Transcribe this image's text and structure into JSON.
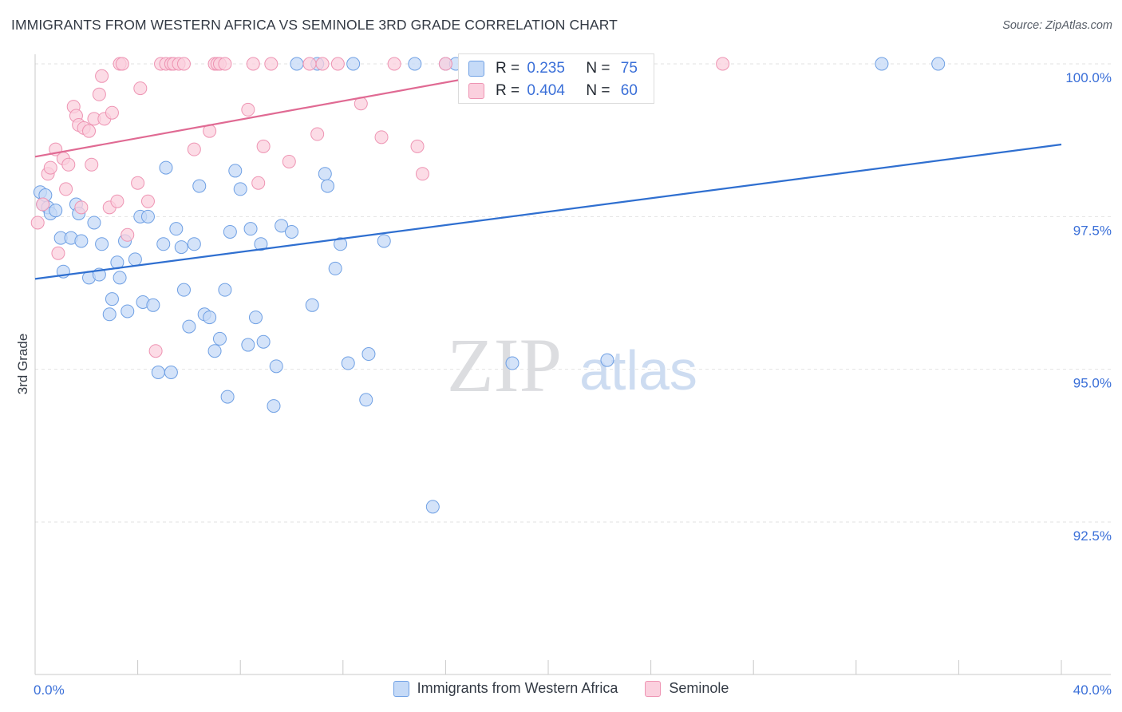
{
  "title": "IMMIGRANTS FROM WESTERN AFRICA VS SEMINOLE 3RD GRADE CORRELATION CHART",
  "source": "Source: ZipAtlas.com",
  "watermark": {
    "zip": "ZIP",
    "atlas": "atlas"
  },
  "stats": [
    {
      "r_label": "R =",
      "r_value": "0.235",
      "n_label": "N =",
      "n_value": "75",
      "color": "blue"
    },
    {
      "r_label": "R =",
      "r_value": "0.404",
      "n_label": "N =",
      "n_value": "60",
      "color": "pink"
    }
  ],
  "legend": [
    {
      "label": "Immigrants from Western Africa",
      "color": "blue"
    },
    {
      "label": "Seminole",
      "color": "pink"
    }
  ],
  "colors": {
    "blue_fill": "#c5daf7",
    "blue_stroke": "#6fa0e4",
    "blue_line": "#2f6fd0",
    "pink_fill": "#fbd0de",
    "pink_stroke": "#ee94b3",
    "pink_line": "#e06a93",
    "tick_label": "#3a6fd8",
    "grid": "#e2e2e2"
  },
  "chart_data": {
    "type": "scatter",
    "title": "IMMIGRANTS FROM WESTERN AFRICA VS SEMINOLE 3RD GRADE CORRELATION CHART",
    "xlabel": "",
    "ylabel": "3rd Grade",
    "xlim": [
      0,
      40
    ],
    "ylim": [
      90.2,
      100.25
    ],
    "x_tick_labels": [
      {
        "value": 0,
        "label": "0.0%"
      },
      {
        "value": 40,
        "label": "40.0%"
      }
    ],
    "x_minor_ticks": [
      0,
      4,
      8,
      12,
      16,
      20,
      24,
      28,
      32,
      36,
      40
    ],
    "y_ticks": [
      {
        "value": 100.0,
        "label": "100.0%"
      },
      {
        "value": 97.5,
        "label": "97.5%"
      },
      {
        "value": 95.0,
        "label": "95.0%"
      },
      {
        "value": 92.5,
        "label": "92.5%"
      }
    ],
    "series": [
      {
        "name": "Immigrants from Western Africa",
        "color": "blue",
        "trend": {
          "x": [
            0,
            40
          ],
          "y": [
            96.48,
            98.68
          ]
        },
        "points": [
          [
            0.2,
            97.9
          ],
          [
            0.3,
            97.7
          ],
          [
            0.4,
            97.85
          ],
          [
            0.5,
            97.65
          ],
          [
            0.6,
            97.55
          ],
          [
            0.8,
            97.6
          ],
          [
            1.0,
            97.15
          ],
          [
            1.1,
            96.6
          ],
          [
            1.4,
            97.15
          ],
          [
            1.6,
            97.7
          ],
          [
            1.7,
            97.55
          ],
          [
            1.8,
            97.1
          ],
          [
            2.1,
            96.5
          ],
          [
            2.3,
            97.4
          ],
          [
            2.5,
            96.55
          ],
          [
            2.6,
            97.05
          ],
          [
            2.9,
            95.9
          ],
          [
            3.0,
            96.15
          ],
          [
            3.2,
            96.75
          ],
          [
            3.3,
            96.5
          ],
          [
            3.5,
            97.1
          ],
          [
            3.6,
            95.95
          ],
          [
            3.9,
            96.8
          ],
          [
            4.1,
            97.5
          ],
          [
            4.2,
            96.1
          ],
          [
            4.4,
            97.5
          ],
          [
            4.6,
            96.05
          ],
          [
            4.8,
            94.95
          ],
          [
            5.0,
            97.05
          ],
          [
            5.1,
            98.3
          ],
          [
            5.3,
            94.95
          ],
          [
            5.5,
            97.3
          ],
          [
            5.7,
            97.0
          ],
          [
            5.8,
            96.3
          ],
          [
            6.0,
            95.7
          ],
          [
            6.2,
            97.05
          ],
          [
            6.4,
            98.0
          ],
          [
            6.6,
            95.9
          ],
          [
            6.8,
            95.85
          ],
          [
            7.0,
            95.3
          ],
          [
            7.2,
            95.5
          ],
          [
            7.4,
            96.3
          ],
          [
            7.5,
            94.55
          ],
          [
            7.6,
            97.25
          ],
          [
            7.8,
            98.25
          ],
          [
            8.0,
            97.95
          ],
          [
            8.3,
            95.4
          ],
          [
            8.4,
            97.3
          ],
          [
            8.6,
            95.85
          ],
          [
            8.8,
            97.05
          ],
          [
            8.9,
            95.45
          ],
          [
            9.3,
            94.4
          ],
          [
            9.4,
            95.05
          ],
          [
            9.6,
            97.35
          ],
          [
            10.0,
            97.25
          ],
          [
            10.2,
            100.0
          ],
          [
            10.8,
            96.05
          ],
          [
            11.0,
            100.0
          ],
          [
            11.3,
            98.2
          ],
          [
            11.4,
            98.0
          ],
          [
            11.7,
            96.65
          ],
          [
            11.9,
            97.05
          ],
          [
            12.2,
            95.1
          ],
          [
            12.4,
            100.0
          ],
          [
            12.9,
            94.5
          ],
          [
            13.0,
            95.25
          ],
          [
            13.6,
            97.1
          ],
          [
            14.8,
            100.0
          ],
          [
            15.5,
            92.75
          ],
          [
            16.0,
            100.0
          ],
          [
            16.4,
            100.0
          ],
          [
            18.6,
            95.1
          ],
          [
            22.3,
            95.15
          ],
          [
            33.0,
            100.0
          ],
          [
            35.2,
            100.0
          ]
        ]
      },
      {
        "name": "Seminole",
        "color": "pink",
        "trend": {
          "x": [
            0,
            20
          ],
          "y": [
            98.48,
            100.0
          ]
        },
        "points": [
          [
            0.1,
            97.4
          ],
          [
            0.3,
            97.7
          ],
          [
            0.5,
            98.2
          ],
          [
            0.6,
            98.3
          ],
          [
            0.8,
            98.6
          ],
          [
            0.9,
            96.9
          ],
          [
            1.1,
            98.45
          ],
          [
            1.2,
            97.95
          ],
          [
            1.3,
            98.35
          ],
          [
            1.5,
            99.3
          ],
          [
            1.6,
            99.15
          ],
          [
            1.7,
            99.0
          ],
          [
            1.8,
            97.65
          ],
          [
            1.9,
            98.95
          ],
          [
            2.1,
            98.9
          ],
          [
            2.2,
            98.35
          ],
          [
            2.3,
            99.1
          ],
          [
            2.5,
            99.5
          ],
          [
            2.6,
            99.8
          ],
          [
            2.7,
            99.1
          ],
          [
            2.9,
            97.65
          ],
          [
            3.0,
            99.2
          ],
          [
            3.2,
            97.75
          ],
          [
            3.3,
            100.0
          ],
          [
            3.4,
            100.0
          ],
          [
            3.6,
            97.2
          ],
          [
            4.0,
            98.05
          ],
          [
            4.1,
            99.6
          ],
          [
            4.4,
            97.75
          ],
          [
            4.7,
            95.3
          ],
          [
            4.9,
            100.0
          ],
          [
            5.1,
            100.0
          ],
          [
            5.3,
            100.0
          ],
          [
            5.4,
            100.0
          ],
          [
            5.6,
            100.0
          ],
          [
            5.8,
            100.0
          ],
          [
            6.2,
            98.6
          ],
          [
            6.8,
            98.9
          ],
          [
            7.0,
            100.0
          ],
          [
            7.1,
            100.0
          ],
          [
            7.2,
            100.0
          ],
          [
            7.4,
            100.0
          ],
          [
            8.3,
            99.25
          ],
          [
            8.5,
            100.0
          ],
          [
            8.7,
            98.05
          ],
          [
            8.9,
            98.65
          ],
          [
            9.2,
            100.0
          ],
          [
            9.9,
            98.4
          ],
          [
            10.7,
            100.0
          ],
          [
            11.0,
            98.85
          ],
          [
            11.2,
            100.0
          ],
          [
            11.8,
            100.0
          ],
          [
            12.7,
            99.35
          ],
          [
            13.5,
            98.8
          ],
          [
            14.0,
            100.0
          ],
          [
            14.9,
            98.65
          ],
          [
            15.1,
            98.2
          ],
          [
            16.0,
            100.0
          ],
          [
            20.1,
            100.0
          ],
          [
            26.8,
            100.0
          ]
        ]
      }
    ]
  }
}
